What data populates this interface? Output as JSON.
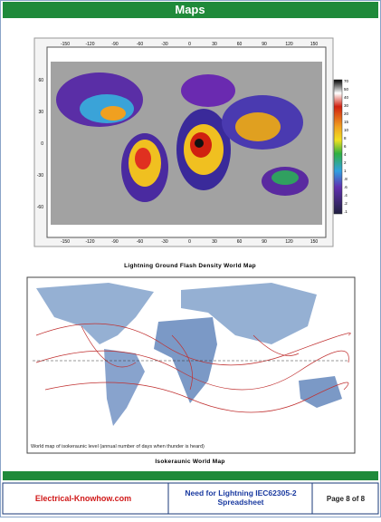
{
  "header": {
    "title": "Maps"
  },
  "figures": [
    {
      "x_labels": [
        "-150",
        "-120",
        "-90",
        "-60",
        "-30",
        "0",
        "30",
        "60",
        "90",
        "120",
        "150"
      ],
      "y_labels": [
        "60",
        "30",
        "0",
        "-30",
        "-60"
      ],
      "colorbar_labels": [
        "70",
        "50",
        "40",
        "30",
        "20",
        "15",
        "10",
        "8",
        "6",
        "4",
        "2",
        "1",
        ".8",
        ".6",
        ".4",
        ".2",
        ".1"
      ],
      "caption": "Lightning Ground Flash Density World Map"
    },
    {
      "note": "World map of isokeraunic level (annual number of days when thunder is heard)",
      "caption": "Isokeraunic World Map"
    }
  ],
  "footer": {
    "site": "Electrical-Knowhow.com",
    "doc_title": "Need for Lightning IEC62305-2 Spreadsheet",
    "page": "Page 8 of 8"
  }
}
